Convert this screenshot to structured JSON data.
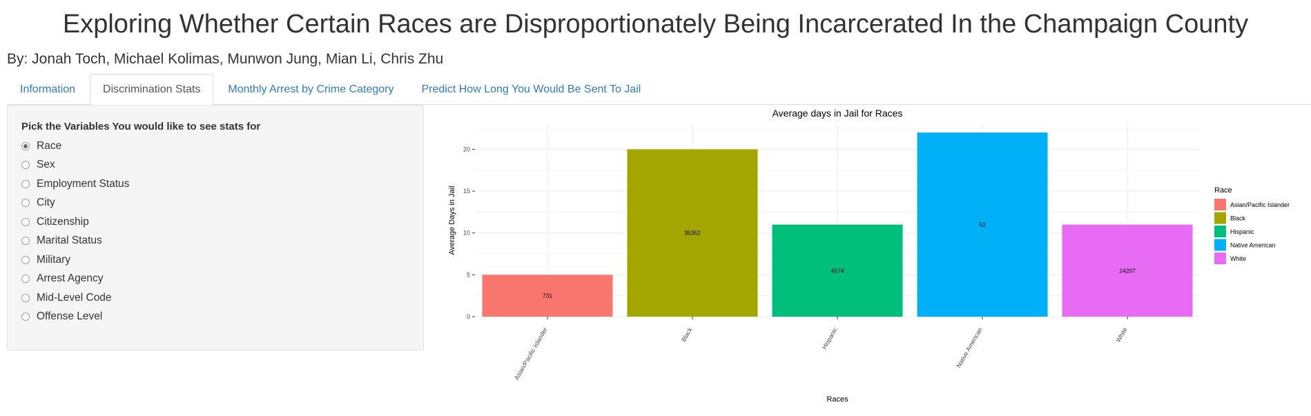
{
  "header": {
    "title": "Exploring Whether Certain Races are Disproportionately Being Incarcerated In the Champaign County",
    "authors": "By: Jonah Toch, Michael Kolimas, Munwon Jung, Mian Li, Chris Zhu"
  },
  "tabs": [
    {
      "label": "Information",
      "active": false
    },
    {
      "label": "Discrimination Stats",
      "active": true
    },
    {
      "label": "Monthly Arrest by Crime Category",
      "active": false
    },
    {
      "label": "Predict How Long You Would Be Sent To Jail",
      "active": false
    }
  ],
  "sidebar": {
    "label": "Pick the Variables You would like to see stats for",
    "options": [
      {
        "label": "Race",
        "selected": true
      },
      {
        "label": "Sex",
        "selected": false
      },
      {
        "label": "Employment Status",
        "selected": false
      },
      {
        "label": "City",
        "selected": false
      },
      {
        "label": "Citizenship",
        "selected": false
      },
      {
        "label": "Marital Status",
        "selected": false
      },
      {
        "label": "Military",
        "selected": false
      },
      {
        "label": "Arrest Agency",
        "selected": false
      },
      {
        "label": "Mid-Level Code",
        "selected": false
      },
      {
        "label": "Offense Level",
        "selected": false
      }
    ]
  },
  "chart_data": {
    "type": "bar",
    "title": "Average days in Jail for Races",
    "xlabel": "Races",
    "ylabel": "Average Days in Jail",
    "ylim": [
      0,
      23
    ],
    "yticks": [
      0,
      5,
      10,
      15,
      20
    ],
    "categories": [
      "Asian/Pacific Islander",
      "Black",
      "Hispanic",
      "Native American",
      "White"
    ],
    "values": [
      5,
      20,
      11,
      22,
      11
    ],
    "data_labels": [
      "731",
      "35352",
      "4574",
      "52",
      "24207"
    ],
    "colors": [
      "#F8766D",
      "#A3A500",
      "#00BF7D",
      "#00B0F6",
      "#E76BF3"
    ],
    "grid": true,
    "legend": {
      "title": "Race",
      "position": "right",
      "entries": [
        "Asian/Pacific Islander",
        "Black",
        "Hispanic",
        "Native American",
        "White"
      ]
    }
  }
}
